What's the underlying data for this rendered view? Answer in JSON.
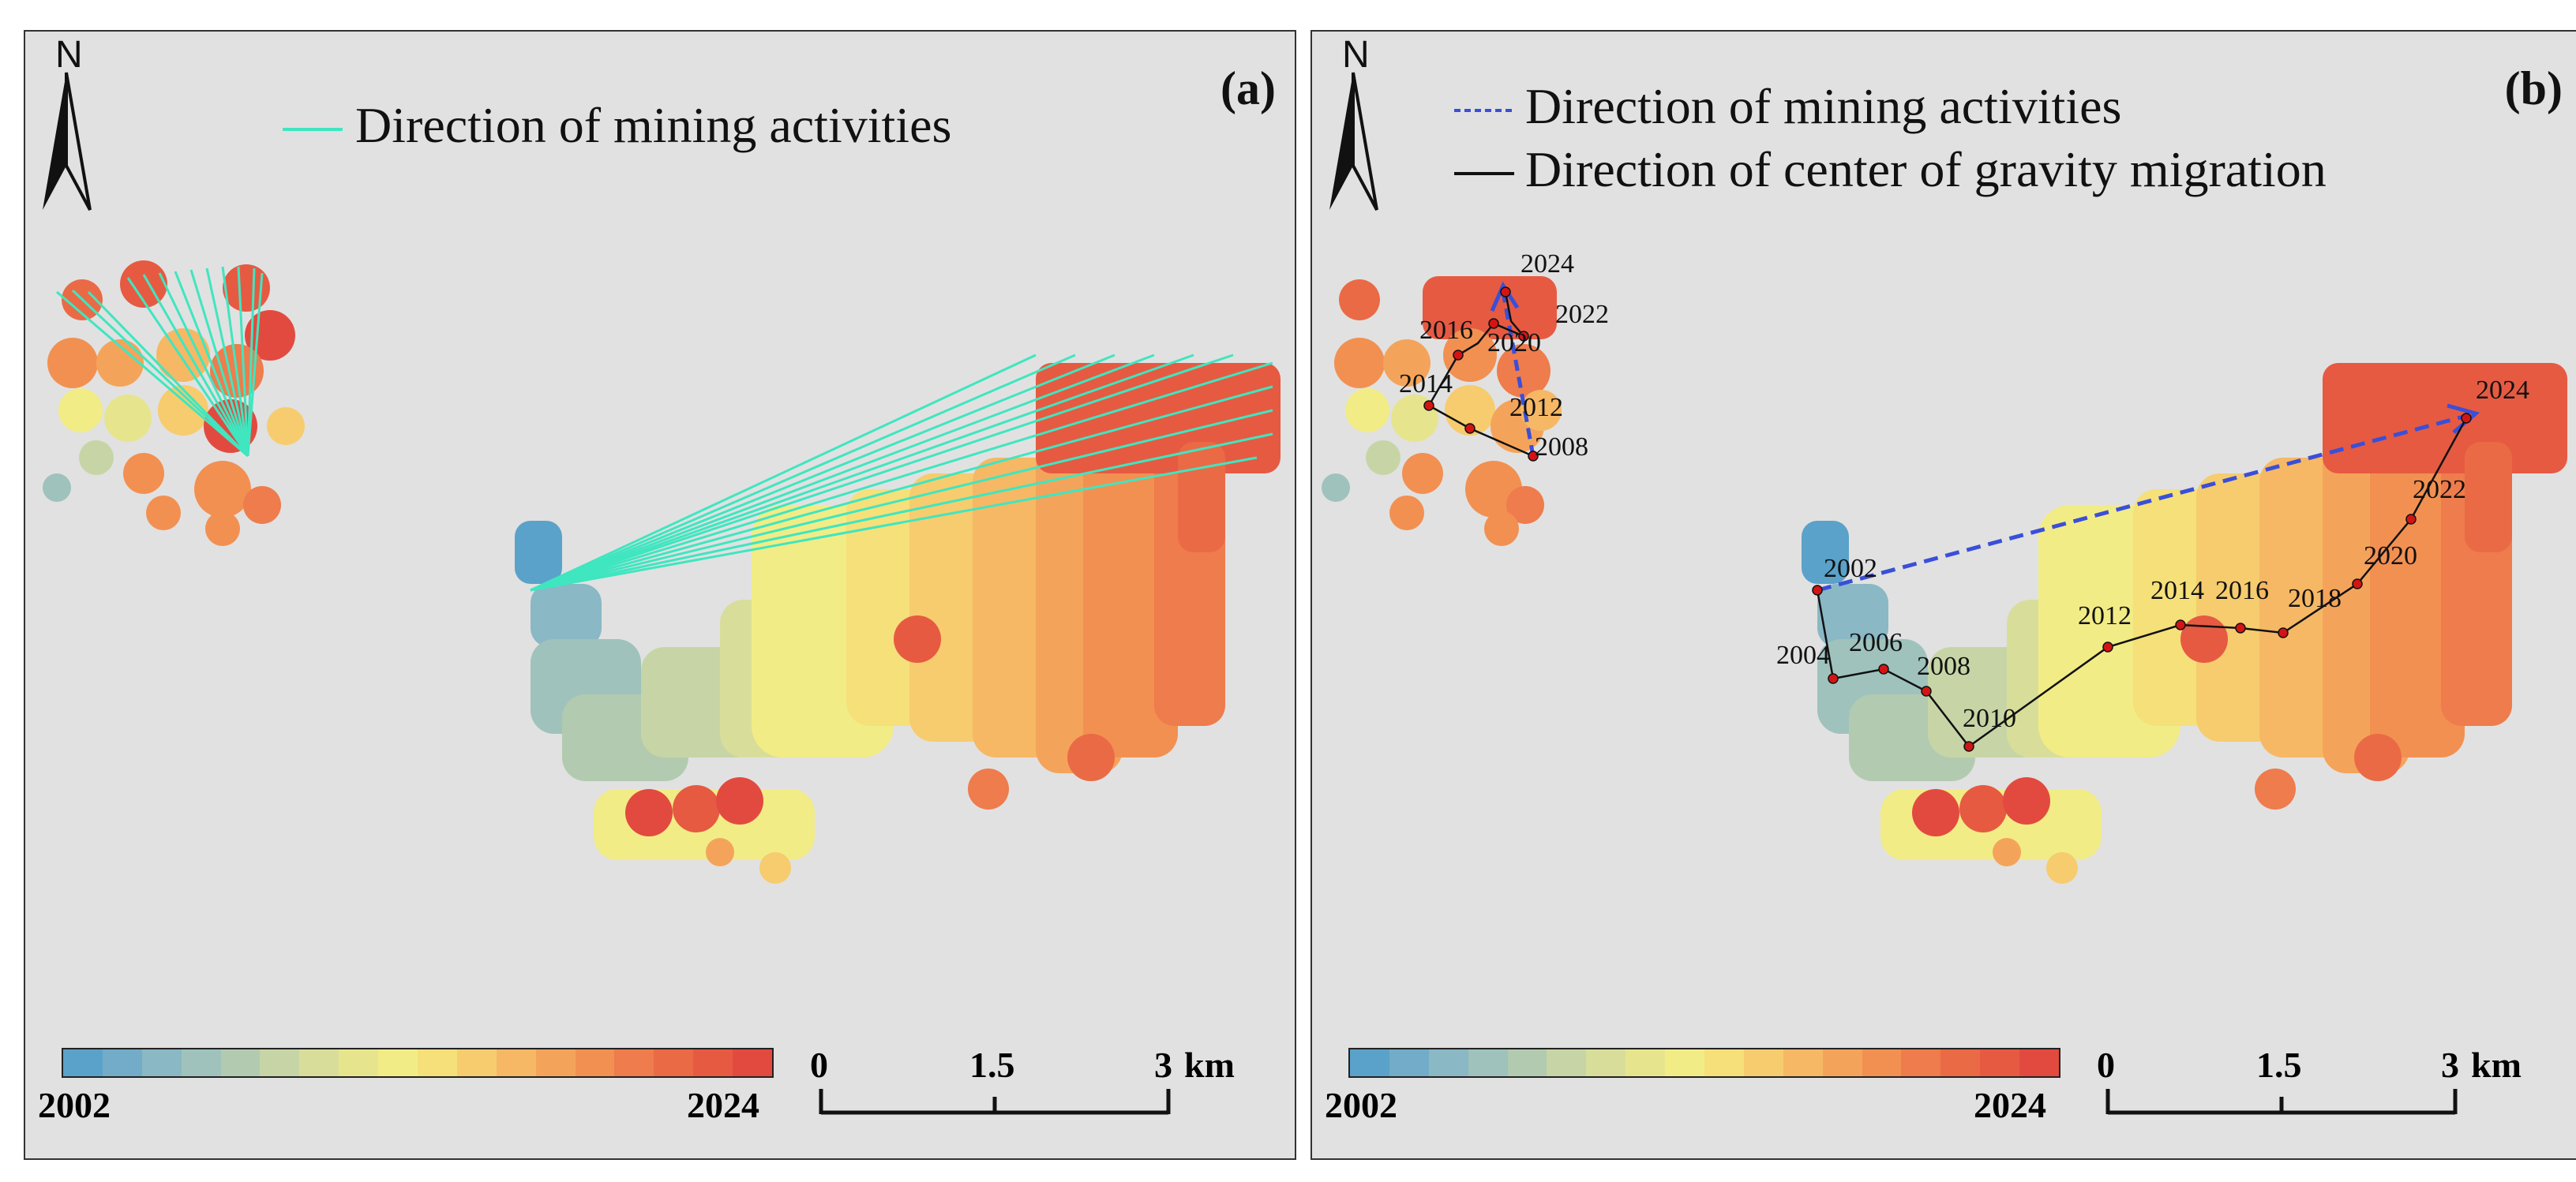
{
  "panels": {
    "a": {
      "label": "(a)",
      "legend": [
        {
          "text": "Direction of mining activities",
          "color": "#3fe6c0",
          "style": "solid"
        }
      ]
    },
    "b": {
      "label": "(b)",
      "legend": [
        {
          "text": "Direction of mining activities",
          "color": "#3a4fd8",
          "style": "dashed"
        },
        {
          "text": "Direction of center of gravity migration",
          "color": "#111111",
          "style": "solid"
        }
      ],
      "gravity_years_west": [
        "2008",
        "2012",
        "2014",
        "2016",
        "2020",
        "2022",
        "2024"
      ],
      "gravity_years_east": [
        "2002",
        "2004",
        "2006",
        "2008",
        "2010",
        "2012",
        "2014",
        "2016",
        "2018",
        "2020",
        "2022",
        "2024"
      ]
    }
  },
  "north_arrow": {
    "label": "N"
  },
  "colorbar": {
    "min_label": "2002",
    "max_label": "2024",
    "colors": [
      "#5aa2c9",
      "#72acc8",
      "#8ab8c4",
      "#9fc2bc",
      "#b2cbb0",
      "#c7d5a6",
      "#d8de9a",
      "#e6e58e",
      "#f2ec86",
      "#f5e07a",
      "#f6cc6e",
      "#f6b864",
      "#f4a45a",
      "#f29052",
      "#ee7c4c",
      "#ea6a46",
      "#e65a42",
      "#e24a40"
    ]
  },
  "scalebar": {
    "ticks": [
      "0",
      "1.5",
      "3"
    ],
    "unit": "km"
  }
}
